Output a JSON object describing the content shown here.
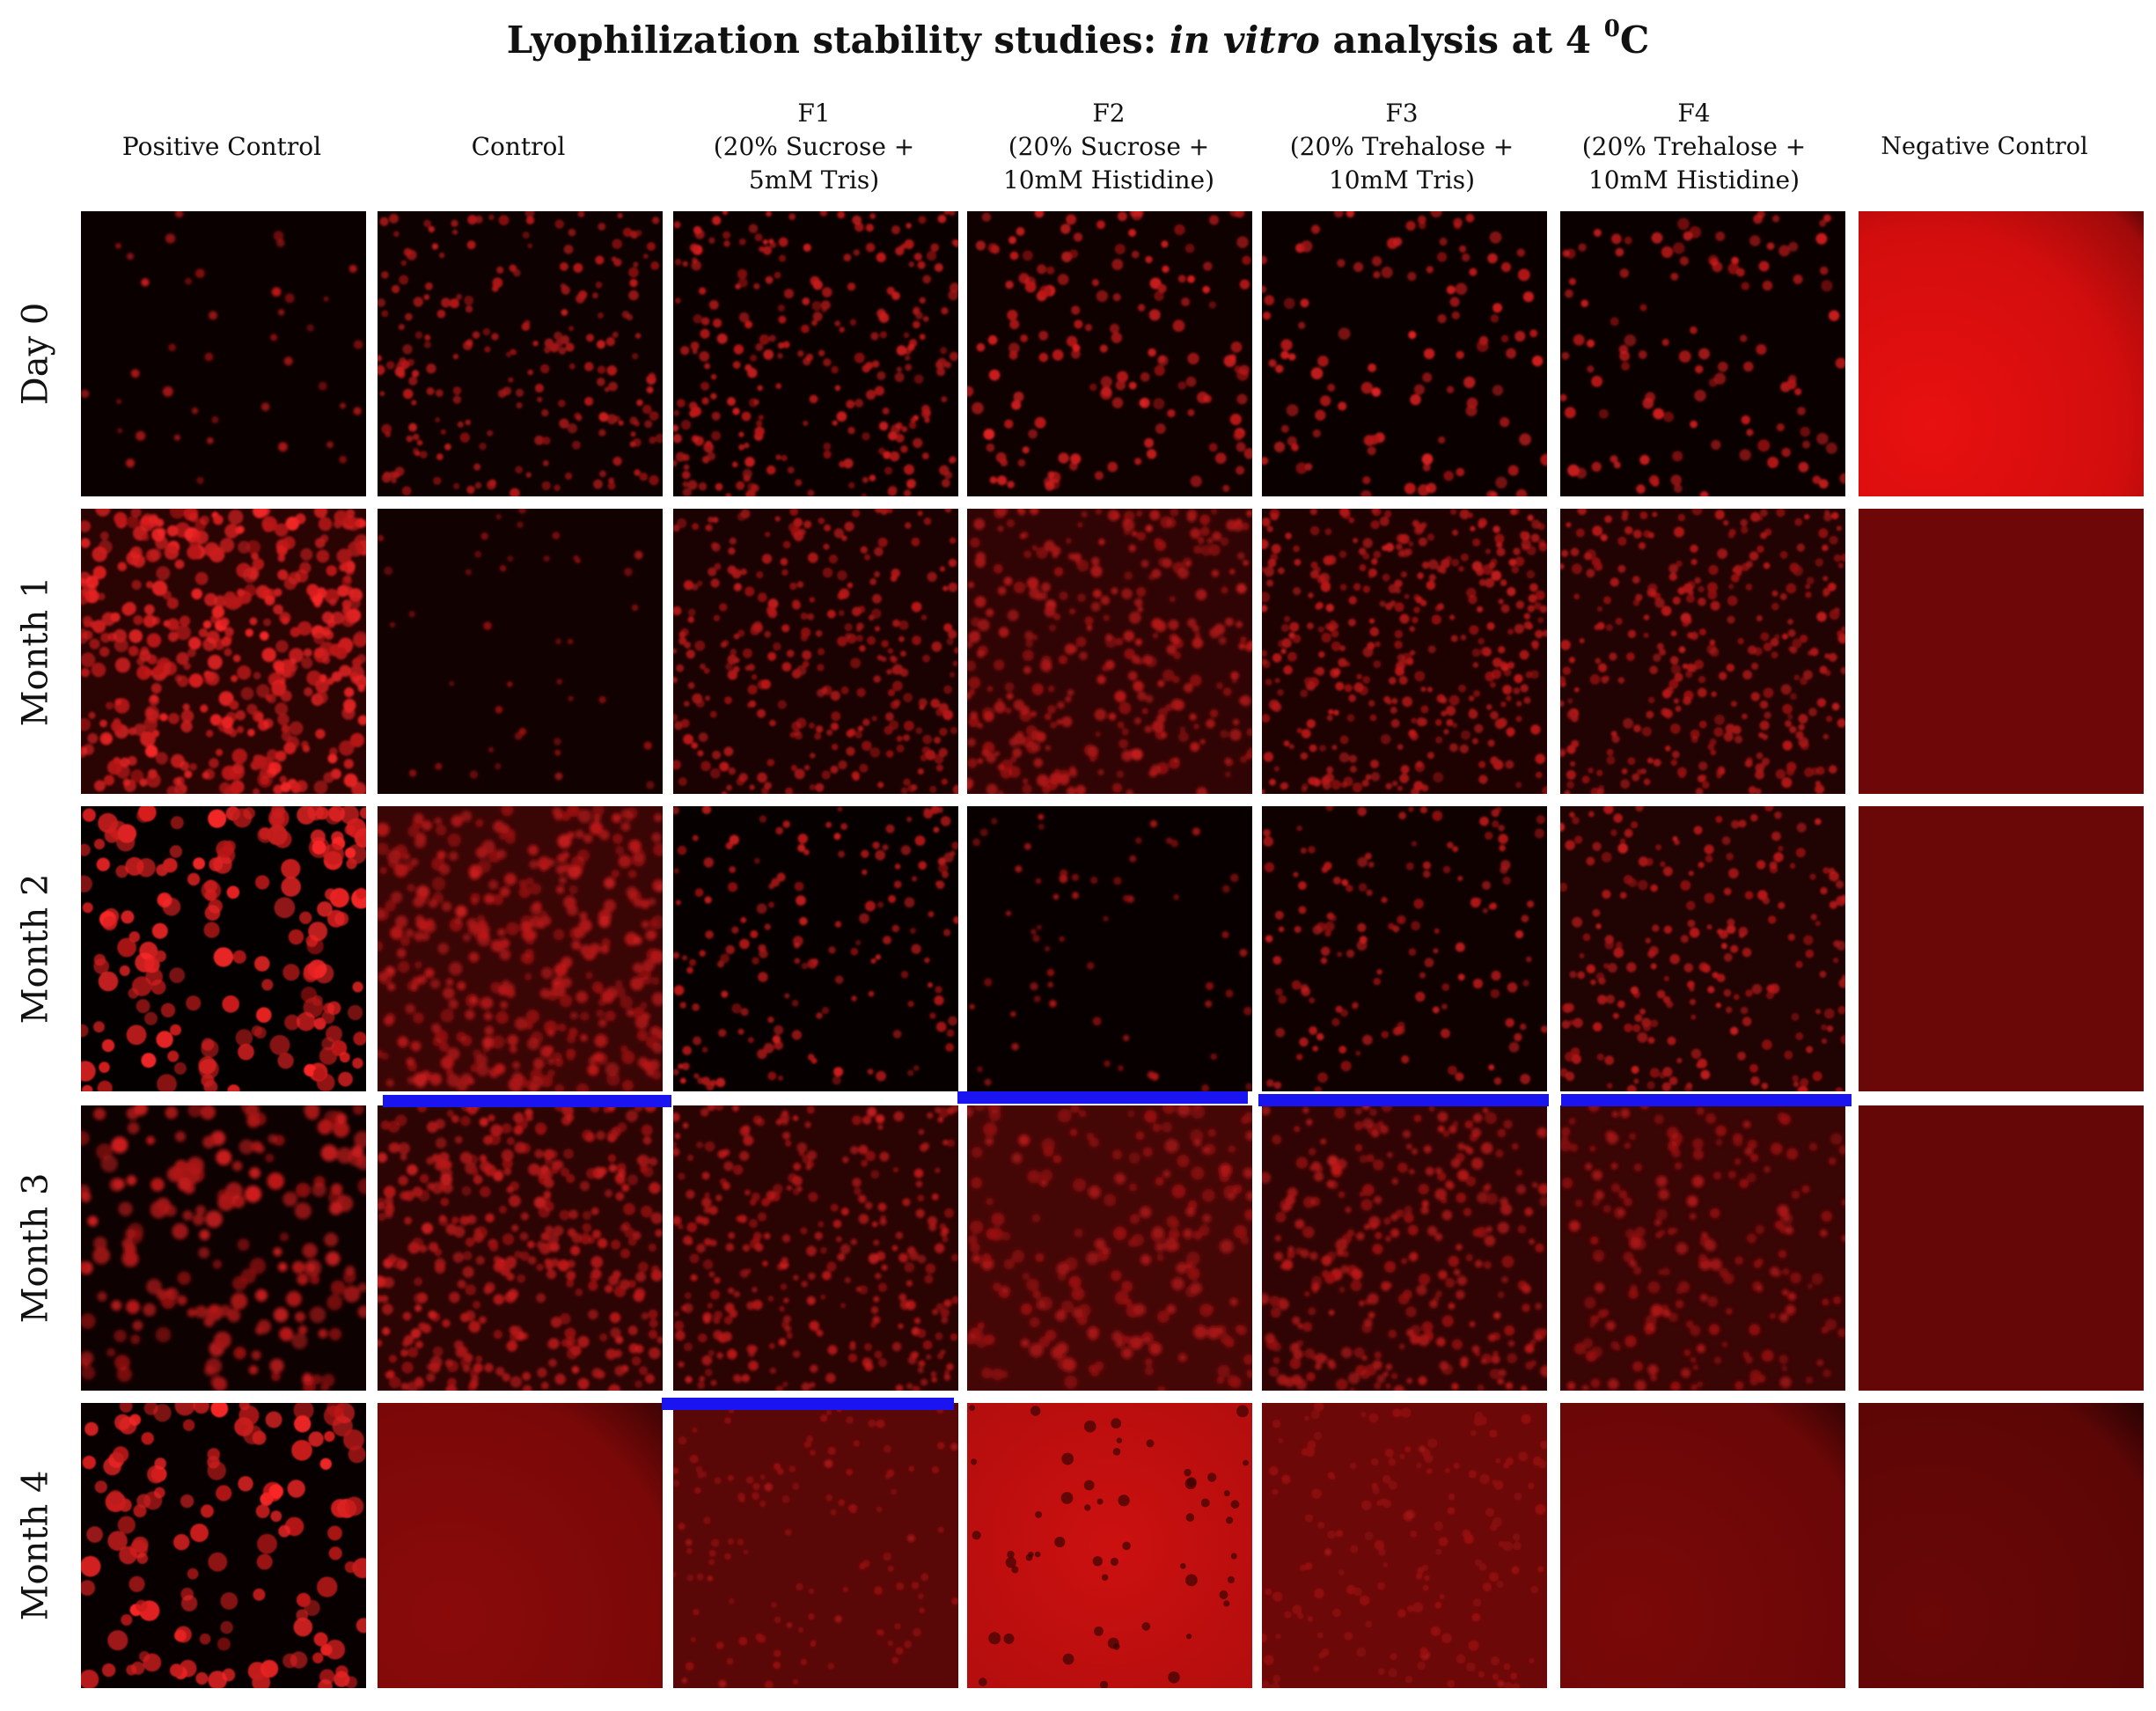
{
  "title": {
    "prefix": "Lyophilization stability studies: ",
    "italic": "in vitro",
    "middle": " analysis at 4 ",
    "superscript": "0",
    "suffix": "C"
  },
  "columns": [
    {
      "lines": [
        "Positive Control"
      ]
    },
    {
      "lines": [
        "Control"
      ]
    },
    {
      "lines": [
        "F1",
        "(20% Sucrose +",
        "5mM Tris)"
      ]
    },
    {
      "lines": [
        "F2",
        "(20% Sucrose +",
        "10mM Histidine)"
      ]
    },
    {
      "lines": [
        "F3",
        "(20% Trehalose +",
        "10mM Tris)"
      ]
    },
    {
      "lines": [
        "F4",
        "(20% Trehalose +",
        "10mM Histidine)"
      ]
    },
    {
      "lines": [
        "Negative Control"
      ]
    }
  ],
  "rows": [
    "Day 0",
    "Month 1",
    "Month 2",
    "Month 3",
    "Month 4"
  ],
  "colors": {
    "bar": "#1a14f0",
    "cell_bright": "#ff2020",
    "background_dark": "#050000"
  }
}
